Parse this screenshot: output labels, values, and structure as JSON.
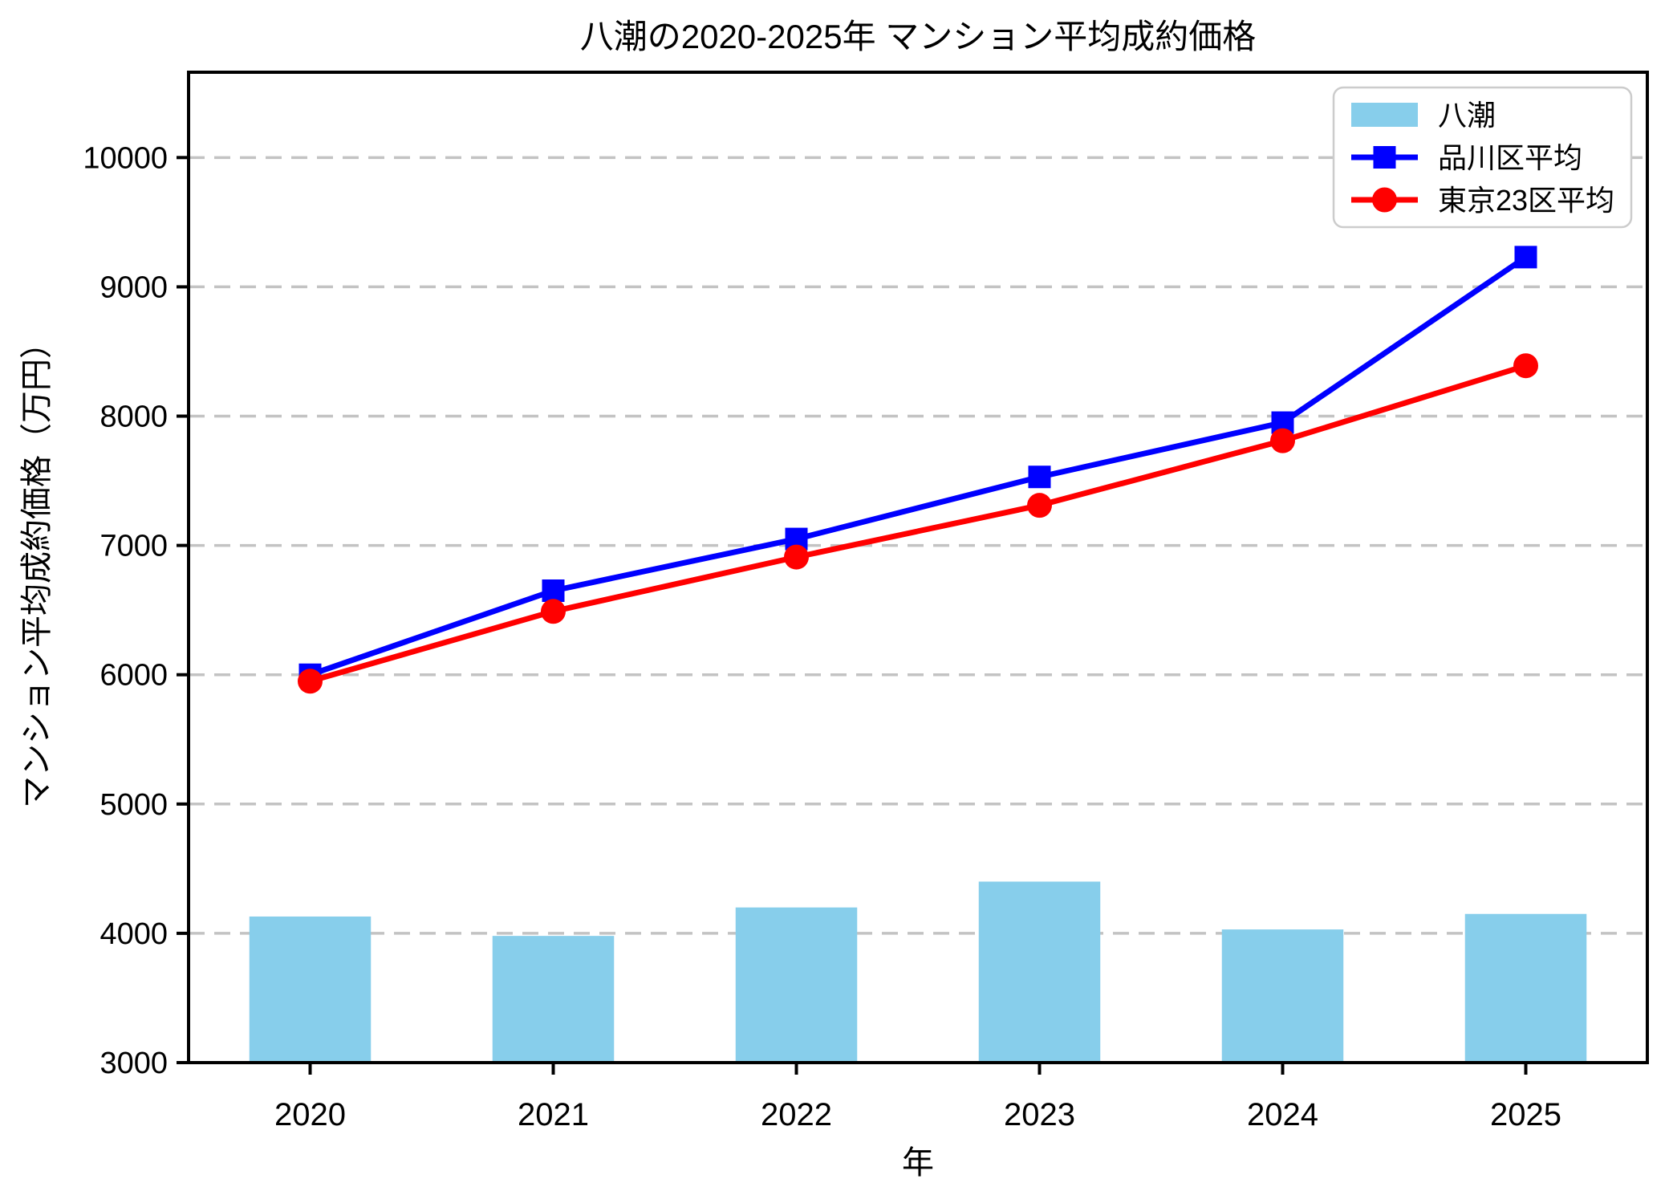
{
  "chart_data": {
    "type": "bar",
    "title": "八潮の2020-2025年 マンション平均成約価格",
    "xlabel": "年",
    "ylabel": "マンション平均成約価格（万円）",
    "categories": [
      "2020",
      "2021",
      "2022",
      "2023",
      "2024",
      "2025"
    ],
    "series": [
      {
        "name": "八潮",
        "kind": "bar",
        "marker": "patch",
        "color": "#87CEEB",
        "values": [
          4130,
          3980,
          4200,
          4400,
          4030,
          4150
        ]
      },
      {
        "name": "品川区平均",
        "kind": "line",
        "marker": "square",
        "color": "#0000FF",
        "values": [
          6000,
          6650,
          7050,
          7530,
          7950,
          9230
        ]
      },
      {
        "name": "東京23区平均",
        "kind": "line",
        "marker": "circle",
        "color": "#FF0000",
        "values": [
          5950,
          6490,
          6910,
          7310,
          7810,
          8390
        ]
      }
    ],
    "ylim": [
      3000,
      10660
    ],
    "yticks": [
      3000,
      4000,
      5000,
      6000,
      7000,
      8000,
      9000,
      10000
    ],
    "grid": "horizontal-dashed",
    "gridline_color": "#C3C3C3",
    "axis_color": "#000000",
    "legend_position": "upper right",
    "legend_border_color": "#CCCCCC"
  }
}
